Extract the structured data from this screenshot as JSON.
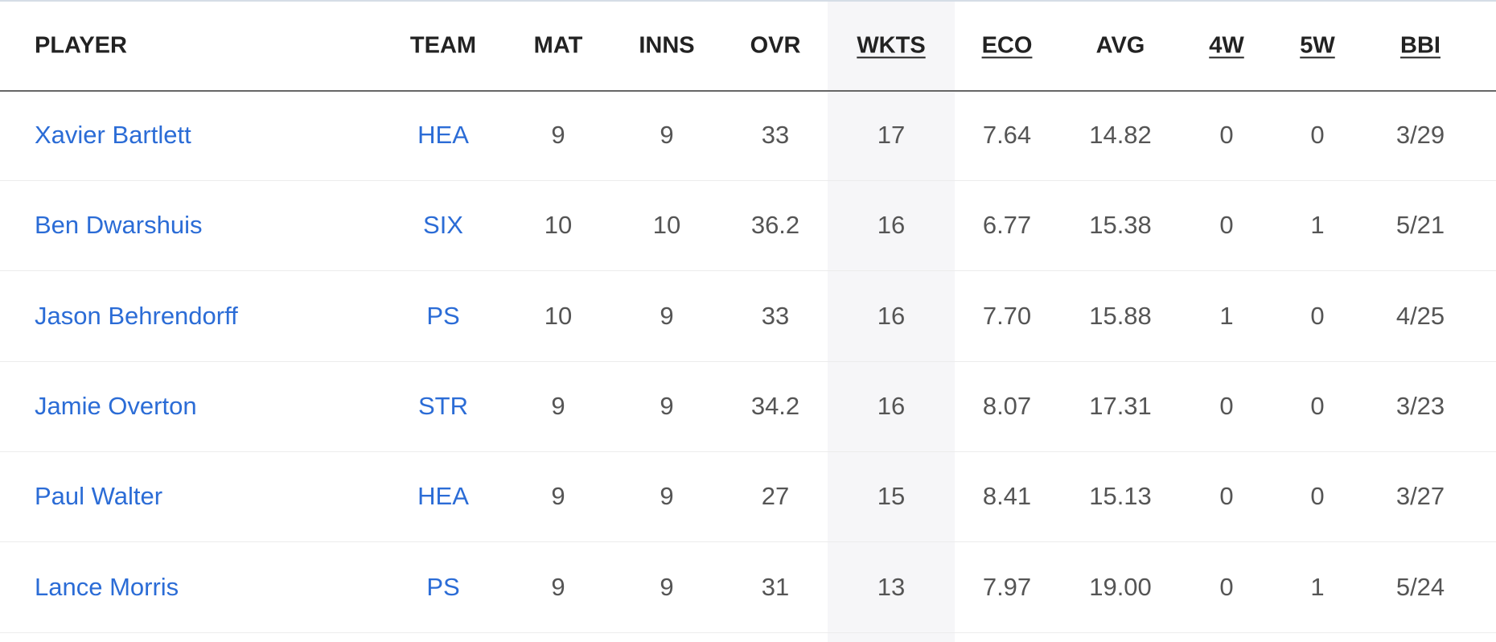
{
  "table": {
    "columns": [
      "PLAYER",
      "TEAM",
      "MAT",
      "INNS",
      "OVR",
      "WKTS",
      "ECO",
      "AVG",
      "4W",
      "5W",
      "BBI"
    ],
    "rows": [
      [
        "Xavier Bartlett",
        "HEA",
        "9",
        "9",
        "33",
        "17",
        "7.64",
        "14.82",
        "0",
        "0",
        "3/29"
      ],
      [
        "Ben Dwarshuis",
        "SIX",
        "10",
        "10",
        "36.2",
        "16",
        "6.77",
        "15.38",
        "0",
        "1",
        "5/21"
      ],
      [
        "Jason Behrendorff",
        "PS",
        "10",
        "9",
        "33",
        "16",
        "7.70",
        "15.88",
        "1",
        "0",
        "4/25"
      ],
      [
        "Jamie Overton",
        "STR",
        "9",
        "9",
        "34.2",
        "16",
        "8.07",
        "17.31",
        "0",
        "0",
        "3/23"
      ],
      [
        "Paul Walter",
        "HEA",
        "9",
        "9",
        "27",
        "15",
        "8.41",
        "15.13",
        "0",
        "0",
        "3/27"
      ],
      [
        "Lance Morris",
        "PS",
        "9",
        "9",
        "31",
        "13",
        "7.97",
        "19.00",
        "0",
        "1",
        "5/24"
      ]
    ]
  }
}
